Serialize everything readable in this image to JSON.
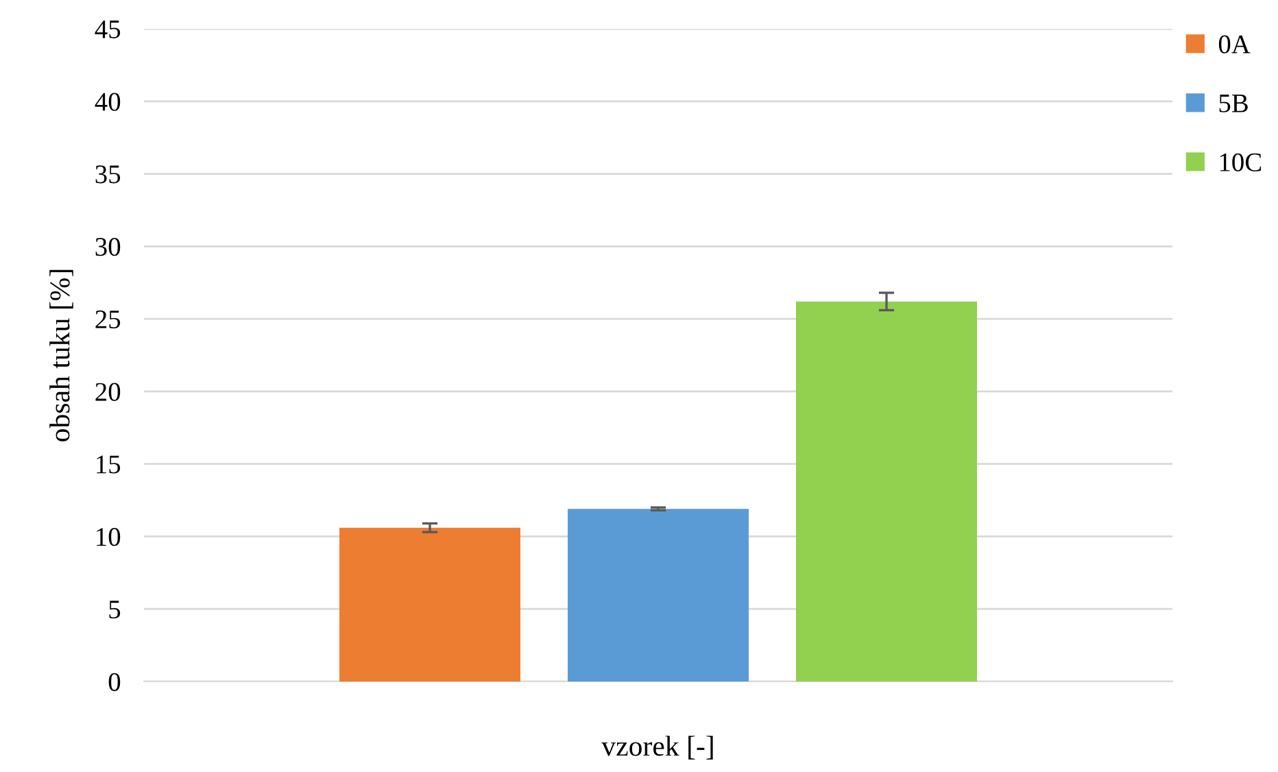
{
  "chart_data": {
    "type": "bar",
    "xlabel": "vzorek [-]",
    "ylabel": "obsah tuku [%]",
    "categories": [
      null
    ],
    "series": [
      {
        "name": "0A",
        "color": "#ed7d31",
        "values": [
          10.6
        ],
        "errors": [
          0.3
        ]
      },
      {
        "name": "5B",
        "color": "#5b9bd5",
        "values": [
          11.9
        ],
        "errors": [
          0.1
        ]
      },
      {
        "name": "10C",
        "color": "#92d050",
        "values": [
          26.2
        ],
        "errors": [
          0.6
        ]
      }
    ],
    "ylim": [
      0,
      45
    ],
    "yticks": [
      0,
      5,
      10,
      15,
      20,
      25,
      30,
      35,
      40,
      45
    ],
    "grid": "y",
    "legend": "top right"
  }
}
